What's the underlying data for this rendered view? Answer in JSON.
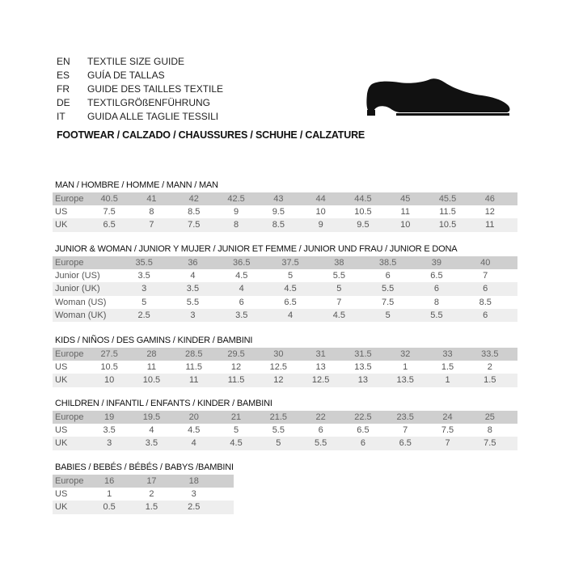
{
  "header": {
    "languages": [
      {
        "code": "EN",
        "text": "TEXTILE SIZE GUIDE"
      },
      {
        "code": "ES",
        "text": "GUÍA DE TALLAS"
      },
      {
        "code": "FR",
        "text": "GUIDE DES TAILLES TEXTILE"
      },
      {
        "code": "DE",
        "text": "TEXTILGRÖßENFÜHRUNG"
      },
      {
        "code": "IT",
        "text": "GUIDA ALLE TAGLIE TESSILI"
      }
    ],
    "subtitle": "FOOTWEAR / CALZADO / CHAUSSURES / SCHUHE / CALZATURE",
    "icon": "shoe-icon"
  },
  "colors": {
    "header_row": "#cfcfcf",
    "alt_row": "#eeeeee"
  },
  "sections": [
    {
      "id": "man",
      "title": "MAN / HOMBRE / HOMME / MANN / MAN",
      "rows": [
        {
          "label": "Europe",
          "values": [
            "40.5",
            "41",
            "42",
            "42.5",
            "43",
            "44",
            "44.5",
            "45",
            "45.5",
            "46"
          ]
        },
        {
          "label": "US",
          "values": [
            "7.5",
            "8",
            "8.5",
            "9",
            "9.5",
            "10",
            "10.5",
            "11",
            "11.5",
            "12"
          ]
        },
        {
          "label": "UK",
          "values": [
            "6.5",
            "7",
            "7.5",
            "8",
            "8.5",
            "9",
            "9.5",
            "10",
            "10.5",
            "11"
          ]
        }
      ]
    },
    {
      "id": "junior-woman",
      "title": "JUNIOR & WOMAN / JUNIOR Y MUJER / JUNIOR ET FEMME / JUNIOR UND FRAU / JUNIOR E DONA",
      "rows": [
        {
          "label": "Europe",
          "values": [
            "35.5",
            "36",
            "36.5",
            "37.5",
            "38",
            "38.5",
            "39",
            "40"
          ]
        },
        {
          "label": "Junior (US)",
          "values": [
            "3.5",
            "4",
            "4.5",
            "5",
            "5.5",
            "6",
            "6.5",
            "7"
          ]
        },
        {
          "label": "Junior (UK)",
          "values": [
            "3",
            "3.5",
            "4",
            "4.5",
            "5",
            "5.5",
            "6",
            "6"
          ]
        },
        {
          "label": "Woman (US)",
          "values": [
            "5",
            "5.5",
            "6",
            "6.5",
            "7",
            "7.5",
            "8",
            "8.5"
          ]
        },
        {
          "label": "Woman (UK)",
          "values": [
            "2.5",
            "3",
            "3.5",
            "4",
            "4.5",
            "5",
            "5.5",
            "6"
          ]
        }
      ]
    },
    {
      "id": "kids",
      "title": "KIDS / NIÑOS / DES GAMINS / KINDER / BAMBINI",
      "rows": [
        {
          "label": "Europe",
          "values": [
            "27.5",
            "28",
            "28.5",
            "29.5",
            "30",
            "31",
            "31.5",
            "32",
            "33",
            "33.5"
          ]
        },
        {
          "label": "US",
          "values": [
            "10.5",
            "11",
            "11.5",
            "12",
            "12.5",
            "13",
            "13.5",
            "1",
            "1.5",
            "2"
          ]
        },
        {
          "label": "UK",
          "values": [
            "10",
            "10.5",
            "11",
            "11.5",
            "12",
            "12.5",
            "13",
            "13.5",
            "1",
            "1.5"
          ]
        }
      ]
    },
    {
      "id": "children",
      "title": "CHILDREN / INFANTIL / ENFANTS / KINDER / BAMBINI",
      "rows": [
        {
          "label": "Europe",
          "values": [
            "19",
            "19.5",
            "20",
            "21",
            "21.5",
            "22",
            "22.5",
            "23.5",
            "24",
            "25"
          ]
        },
        {
          "label": "US",
          "values": [
            "3.5",
            "4",
            "4.5",
            "5",
            "5.5",
            "6",
            "6.5",
            "7",
            "7.5",
            "8"
          ]
        },
        {
          "label": "UK",
          "values": [
            "3",
            "3.5",
            "4",
            "4.5",
            "5",
            "5.5",
            "6",
            "6.5",
            "7",
            "7.5"
          ]
        }
      ]
    },
    {
      "id": "babies",
      "title": "BABIES  / BEBÉS / BÉBÉS / BABYS /BAMBINI",
      "rows": [
        {
          "label": "Europe",
          "values": [
            "16",
            "17",
            "18"
          ]
        },
        {
          "label": "US",
          "values": [
            "1",
            "2",
            "3"
          ]
        },
        {
          "label": "UK",
          "values": [
            "0.5",
            "1.5",
            "2.5"
          ]
        }
      ]
    }
  ]
}
